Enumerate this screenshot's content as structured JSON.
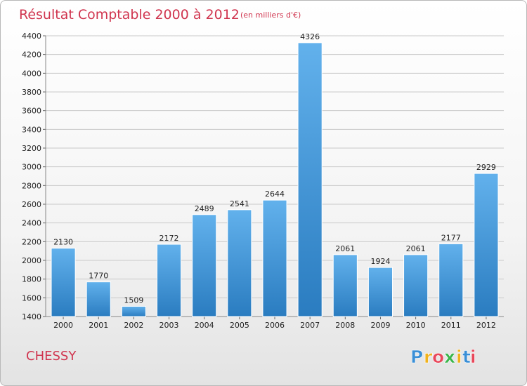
{
  "chart_data": {
    "type": "bar",
    "title": "Résultat Comptable 2000 à 2012",
    "subtitle": "(en milliers d'€)",
    "xlabel": "",
    "ylabel": "",
    "categories": [
      "2000",
      "2001",
      "2002",
      "2003",
      "2004",
      "2005",
      "2006",
      "2007",
      "2008",
      "2009",
      "2010",
      "2011",
      "2012"
    ],
    "values": [
      2130,
      1770,
      1509,
      2172,
      2489,
      2541,
      2644,
      4326,
      2061,
      1924,
      2061,
      2177,
      2929
    ],
    "ylim": [
      1400,
      4400
    ],
    "yticks": [
      1400,
      1600,
      1800,
      2000,
      2200,
      2400,
      2600,
      2800,
      3000,
      3200,
      3400,
      3600,
      3800,
      4000,
      4200,
      4400
    ],
    "grid": true,
    "bar_color": "#3b8fd0"
  },
  "location": "CHESSY",
  "brand": {
    "letters": [
      "P",
      "r",
      "o",
      "x",
      "i",
      "t",
      "i"
    ],
    "colors": [
      "#3a8fd6",
      "#f0b21e",
      "#e8475a",
      "#3ab54a",
      "#f0b21e",
      "#3a8fd6",
      "#e8475a"
    ]
  }
}
